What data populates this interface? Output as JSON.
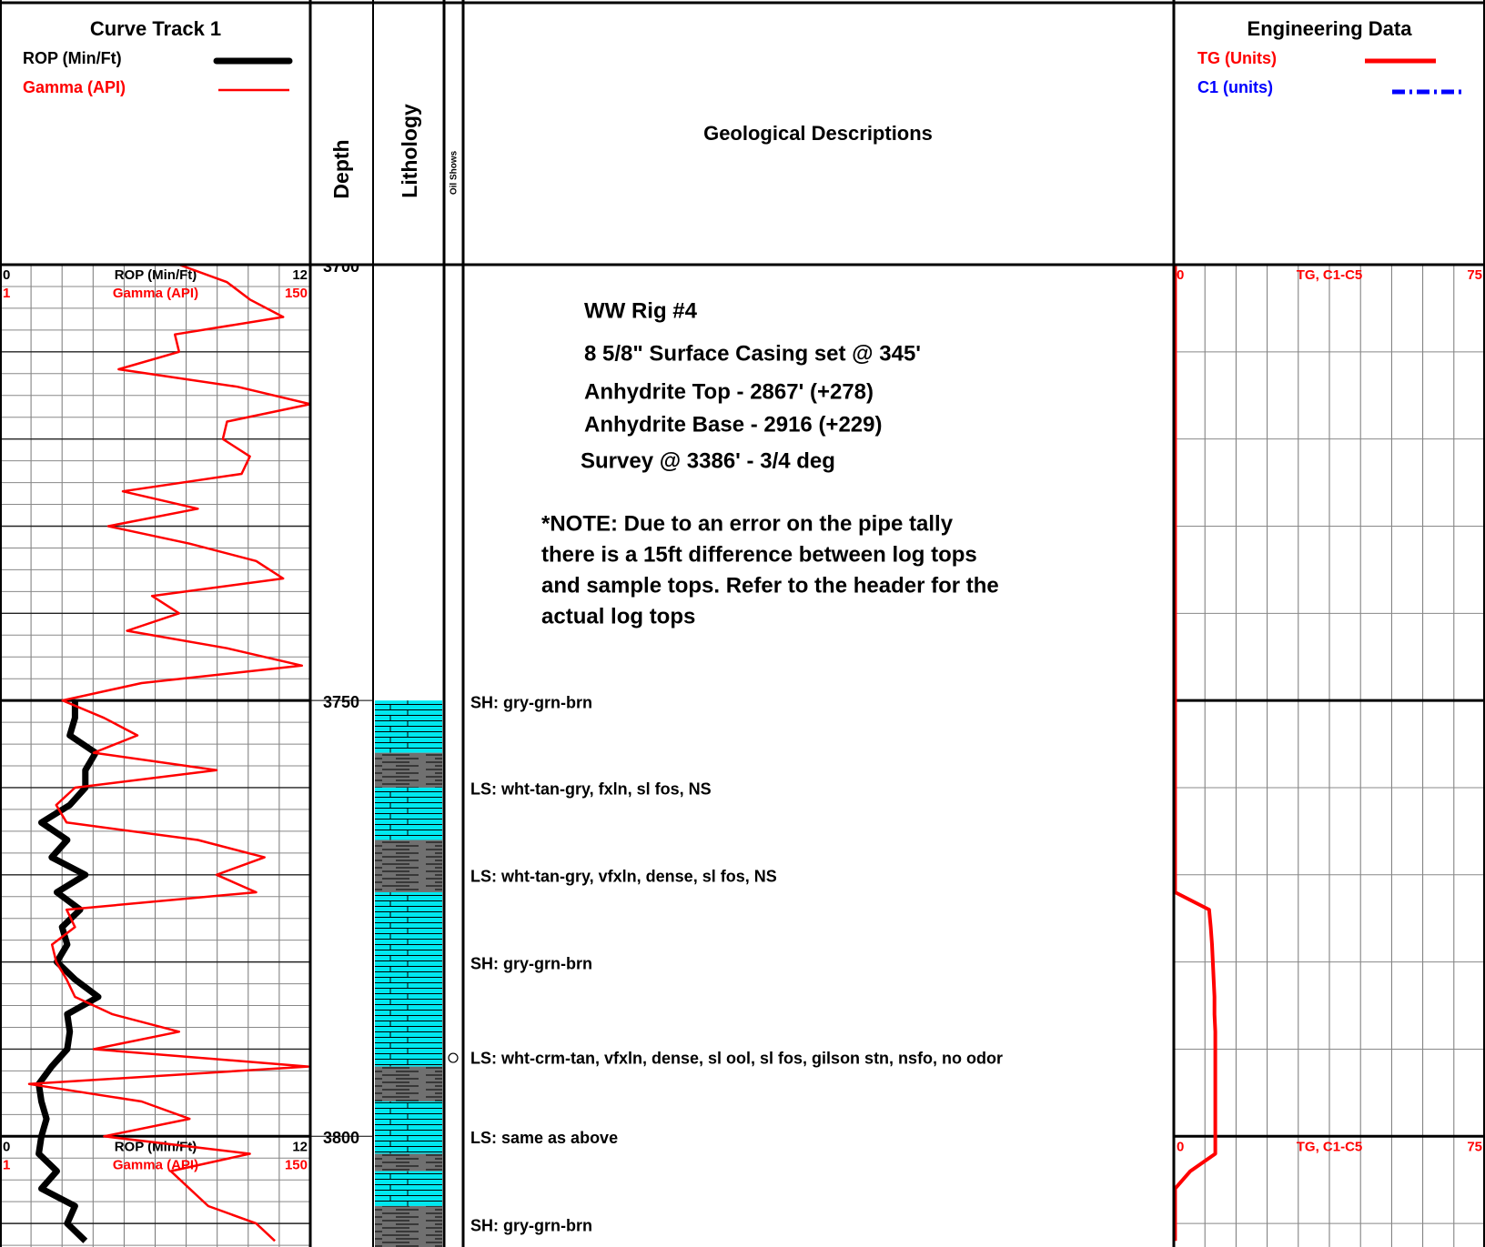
{
  "header": {
    "depth": "Depth",
    "lithology": "Lithology",
    "oil_shows": "Oil Shows",
    "descriptions": "Geological Descriptions"
  },
  "chart_data": [
    {
      "type": "line",
      "title": "Curve Track 1",
      "ylim": [
        3700,
        3812.7
      ],
      "yticks": [
        3700,
        3750,
        3800
      ],
      "y": [
        3700,
        3702,
        3704,
        3706,
        3708,
        3710,
        3712,
        3714,
        3716,
        3718,
        3720,
        3722,
        3724,
        3726,
        3728,
        3730,
        3732,
        3734,
        3736,
        3738,
        3740,
        3742,
        3744,
        3746,
        3748,
        3750,
        3752,
        3754,
        3756,
        3758,
        3760,
        3762,
        3764,
        3766,
        3768,
        3770,
        3772,
        3774,
        3776,
        3778,
        3780,
        3782,
        3784,
        3786,
        3788,
        3790,
        3792,
        3794,
        3796,
        3798,
        3800,
        3802,
        3804,
        3806,
        3808,
        3810,
        3812
      ],
      "series": [
        {
          "name": "ROP (Min/Ft)",
          "color": "#000000",
          "xlim": [
            0,
            12
          ],
          "values": [
            null,
            null,
            null,
            null,
            null,
            null,
            null,
            null,
            null,
            null,
            null,
            null,
            null,
            null,
            null,
            null,
            null,
            null,
            null,
            null,
            null,
            null,
            null,
            null,
            null,
            2.9,
            2.9,
            2.7,
            3.7,
            3.3,
            3.3,
            2.7,
            1.6,
            2.6,
            2.0,
            3.3,
            2.2,
            3.1,
            2.4,
            2.6,
            2.2,
            2.9,
            3.8,
            2.6,
            2.7,
            2.6,
            2.0,
            1.5,
            1.6,
            1.8,
            1.6,
            1.5,
            2.2,
            1.6,
            2.9,
            2.6,
            3.3
          ]
        },
        {
          "name": "Gamma (API)",
          "color": "#ff0000",
          "xlim": [
            1,
            150
          ],
          "values": [
            87,
            110,
            121,
            137,
            85,
            87,
            58,
            115,
            150,
            110,
            108,
            121,
            117,
            60,
            96,
            53,
            92,
            124,
            137,
            74,
            87,
            62,
            110,
            146,
            69,
            31,
            51,
            67,
            46,
            105,
            37,
            28,
            33,
            96,
            128,
            105,
            124,
            33,
            37,
            26,
            28,
            33,
            37,
            55,
            87,
            46,
            149,
            15,
            69,
            92,
            51,
            121,
            83,
            92,
            101,
            124,
            133
          ]
        }
      ]
    },
    {
      "type": "line",
      "title": "Engineering Data",
      "scale_label": "TG, C1-C5",
      "xlim": [
        0,
        75
      ],
      "series": [
        {
          "name": "TG (Units)",
          "color": "#ff0000",
          "values": [
            0.3,
            0.3,
            0.3,
            0.3,
            0.3,
            0.3,
            0.3,
            0.3,
            0.3,
            0.3,
            0.3,
            0.3,
            0.3,
            0.3,
            0.3,
            0.3,
            0.3,
            0.3,
            0.3,
            0.3,
            0.3,
            0.3,
            0.3,
            0.3,
            0.3,
            0.3,
            0.3,
            0.3,
            0.3,
            0.3,
            0.3,
            0.3,
            0.3,
            0.3,
            0.3,
            0.3,
            0.3,
            8.5,
            8.9,
            9.2,
            9.4,
            9.6,
            9.8,
            9.8,
            10.0,
            10.0,
            10.0,
            10.0,
            10.0,
            10.0,
            10.0,
            10.0,
            4,
            0.3,
            0.3,
            0.3,
            0.3
          ]
        },
        {
          "name": "C1 (units)",
          "color": "#0000ff",
          "dashed": true,
          "values": [
            null,
            null,
            null,
            null,
            null,
            null,
            null,
            null,
            null,
            null,
            null,
            null,
            null,
            null,
            null,
            null,
            null,
            null,
            null,
            null,
            null,
            null,
            null,
            null,
            null,
            null,
            null,
            null,
            null,
            null,
            null,
            null,
            null,
            null,
            null,
            null,
            null,
            null,
            null,
            null,
            null,
            null,
            null,
            null,
            null,
            null,
            null,
            null,
            null,
            null,
            null,
            null,
            null,
            null,
            null,
            null,
            null
          ]
        }
      ]
    }
  ],
  "lithology": {
    "intervals": [
      {
        "top": 3750,
        "base": 3756,
        "color": "#00e8f0"
      },
      {
        "top": 3756,
        "base": 3760,
        "color": "#707070"
      },
      {
        "top": 3760,
        "base": 3766,
        "color": "#00e8f0"
      },
      {
        "top": 3766,
        "base": 3772,
        "color": "#707070"
      },
      {
        "top": 3772,
        "base": 3792,
        "color": "#00e8f0"
      },
      {
        "top": 3792,
        "base": 3796,
        "color": "#707070"
      },
      {
        "top": 3796,
        "base": 3802,
        "color": "#00e8f0"
      },
      {
        "top": 3802,
        "base": 3804,
        "color": "#707070"
      },
      {
        "top": 3804,
        "base": 3808,
        "color": "#00e8f0"
      },
      {
        "top": 3808,
        "base": 3812.7,
        "color": "#707070"
      }
    ]
  },
  "oil_shows": [
    3791
  ],
  "notes": [
    "WW Rig #4",
    "8 5/8\" Surface Casing set @ 345'",
    "Anhydrite Top - 2867' (+278)",
    "Anhydrite Base - 2916 (+229)",
    "Survey @ 3386' - 3/4 deg",
    "*NOTE: Due to an error on the pipe tally",
    "there is a 15ft difference between log tops",
    "and sample tops. Refer to the header for the",
    "actual log tops"
  ],
  "descriptions": [
    {
      "depth": 3750.4,
      "text": "SH: gry-grn-brn"
    },
    {
      "depth": 3760.3,
      "text": "LS: wht-tan-gry, fxln, sl fos, NS"
    },
    {
      "depth": 3770.3,
      "text": "LS: wht-tan-gry, vfxln, dense, sl fos, NS"
    },
    {
      "depth": 3780.3,
      "text": "SH: gry-grn-brn"
    },
    {
      "depth": 3791.2,
      "text": "LS: wht-crm-tan, vfxln, dense, sl ool, sl fos, gilson stn, nsfo, no odor"
    },
    {
      "depth": 3800.3,
      "text": "LS: same as above"
    },
    {
      "depth": 3810.4,
      "text": "SH: gry-grn-brn"
    }
  ]
}
